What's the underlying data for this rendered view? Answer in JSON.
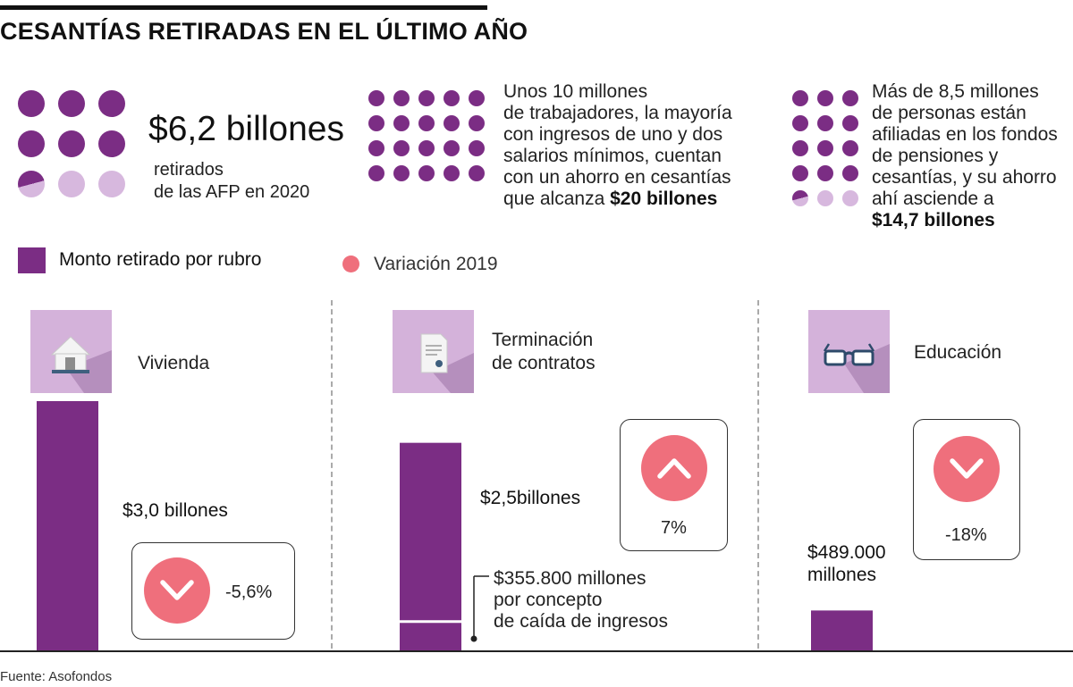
{
  "title": "CESANTÍAS RETIRADAS EN EL ÚLTIMO AÑO",
  "colors": {
    "purple": "#7b2d84",
    "light_purple": "#d7b8de",
    "icon_bg": "#d4b2da",
    "pink": "#ef6f7c",
    "baseline": "#222222"
  },
  "stats": [
    {
      "value": "$6,2 billones",
      "text_lines": [
        "retirados",
        "de las AFP en 2020"
      ],
      "dots_filled": 6.5,
      "dots_total": 9
    },
    {
      "text_lines": [
        "Unos 10 millones",
        "de trabajadores, la mayoría",
        "con ingresos de uno y dos",
        "salarios mínimos, cuentan",
        "con un ahorro en cesantías"
      ],
      "last_line_text": "que alcanza ",
      "bold": "$20 billones",
      "dots_filled": 20,
      "dots_total": 20
    },
    {
      "text_lines": [
        "Más de 8,5 millones",
        "de personas están",
        "afiliadas en los fondos",
        "de pensiones y",
        "cesantías, y su ahorro",
        "ahí asciende a"
      ],
      "bold": "$14,7 billones",
      "dots_filled": 12.5,
      "dots_total": 15
    }
  ],
  "legend": {
    "bar_label": "Monto retirado por rubro",
    "dot_label": "Variación 2019"
  },
  "categories": [
    {
      "name_lines": [
        "Vivienda"
      ],
      "icon": "house-icon"
    },
    {
      "name_lines": [
        "Terminación",
        "de contratos"
      ],
      "icon": "document-icon"
    },
    {
      "name_lines": [
        "Educación"
      ],
      "icon": "glasses-icon"
    }
  ],
  "chart_data": {
    "type": "bar",
    "categories": [
      "Vivienda",
      "Terminación de contratos",
      "Educación"
    ],
    "values": [
      3.0,
      2.5,
      0.489
    ],
    "unit": "billones",
    "value_labels": [
      "$3,0 billones",
      "$2,5billones",
      "$489.000 millones"
    ],
    "segment": {
      "category": "Terminación de contratos",
      "value": 0.3558,
      "label_lines": [
        "$355.800 millones",
        "por concepto",
        "de caída de ingresos"
      ]
    },
    "variation_2019": [
      {
        "category": "Vivienda",
        "label": "-5,6%",
        "direction": "down"
      },
      {
        "category": "Terminación de contratos",
        "label": "7%",
        "direction": "up"
      },
      {
        "category": "Educación",
        "label": "-18%",
        "direction": "down"
      }
    ]
  },
  "source": "Fuente: Asofondos"
}
